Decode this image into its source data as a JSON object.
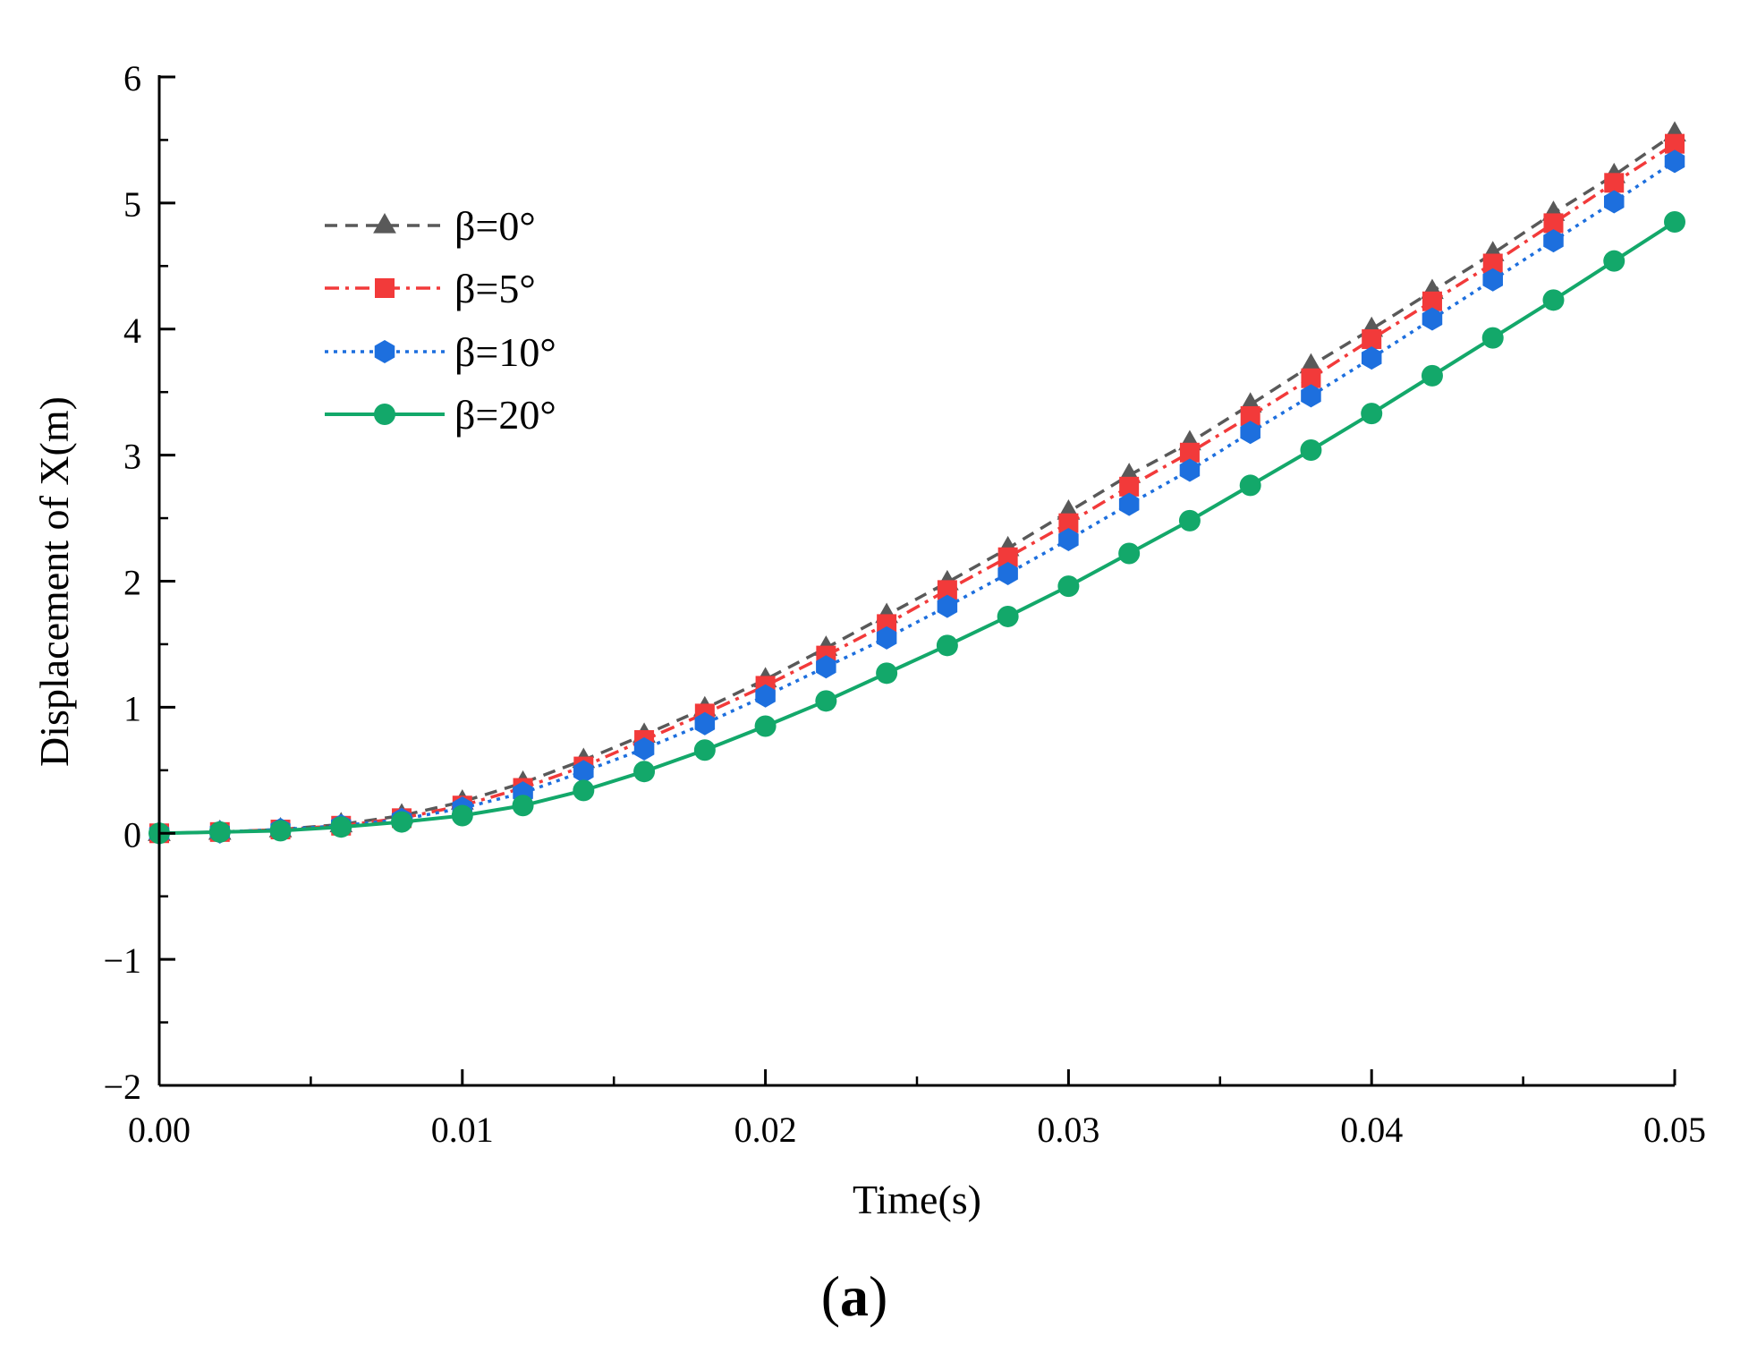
{
  "chart_data": {
    "type": "line",
    "title": "",
    "xlabel": "Time(s)",
    "ylabel": "Displacement of X(m)",
    "panel_label": "a",
    "xlim": [
      0,
      0.05
    ],
    "ylim": [
      -2,
      6
    ],
    "x_ticks": [
      0,
      0.01,
      0.02,
      0.03,
      0.04,
      0.05
    ],
    "x_tick_labels": [
      "0.00",
      "0.01",
      "0.02",
      "0.03",
      "0.04",
      "0.05"
    ],
    "y_ticks": [
      -2,
      -1,
      0,
      1,
      2,
      3,
      4,
      5,
      6
    ],
    "y_tick_labels": [
      "−2",
      "−1",
      "0",
      "1",
      "2",
      "3",
      "4",
      "5",
      "6"
    ],
    "grid": false,
    "legend_position": "top-left",
    "x": [
      0,
      0.002,
      0.004,
      0.006,
      0.008,
      0.01,
      0.012,
      0.014,
      0.016,
      0.018,
      0.02,
      0.022,
      0.024,
      0.026,
      0.028,
      0.03,
      0.032,
      0.034,
      0.036,
      0.038,
      0.04,
      0.042,
      0.044,
      0.046,
      0.048,
      0.05
    ],
    "series": [
      {
        "name": "β=0°",
        "color": "#595959",
        "line_style": "dash",
        "marker": "triangle",
        "values": [
          0,
          0.01,
          0.03,
          0.07,
          0.14,
          0.25,
          0.4,
          0.58,
          0.78,
          0.99,
          1.22,
          1.47,
          1.73,
          1.99,
          2.26,
          2.55,
          2.84,
          3.1,
          3.4,
          3.71,
          4.0,
          4.3,
          4.6,
          4.92,
          5.22,
          5.55
        ]
      },
      {
        "name": "β=5°",
        "color": "#f23a3a",
        "line_style": "dashdot",
        "marker": "square",
        "values": [
          0,
          0.01,
          0.03,
          0.06,
          0.12,
          0.22,
          0.36,
          0.53,
          0.74,
          0.95,
          1.17,
          1.41,
          1.66,
          1.93,
          2.19,
          2.46,
          2.75,
          3.02,
          3.31,
          3.61,
          3.92,
          4.22,
          4.52,
          4.84,
          5.16,
          5.47
        ]
      },
      {
        "name": "β=10°",
        "color": "#1d6fde",
        "line_style": "dot",
        "marker": "hexagon",
        "values": [
          0,
          0.01,
          0.03,
          0.06,
          0.11,
          0.2,
          0.32,
          0.49,
          0.67,
          0.87,
          1.09,
          1.32,
          1.55,
          1.8,
          2.06,
          2.33,
          2.61,
          2.88,
          3.18,
          3.47,
          3.77,
          4.08,
          4.39,
          4.7,
          5.01,
          5.33
        ]
      },
      {
        "name": "β=20°",
        "color": "#13a86a",
        "line_style": "solid",
        "marker": "circle",
        "values": [
          0,
          0.01,
          0.02,
          0.05,
          0.09,
          0.14,
          0.22,
          0.34,
          0.49,
          0.66,
          0.85,
          1.05,
          1.27,
          1.49,
          1.72,
          1.96,
          2.22,
          2.48,
          2.76,
          3.04,
          3.33,
          3.63,
          3.93,
          4.23,
          4.54,
          4.85
        ]
      }
    ]
  }
}
